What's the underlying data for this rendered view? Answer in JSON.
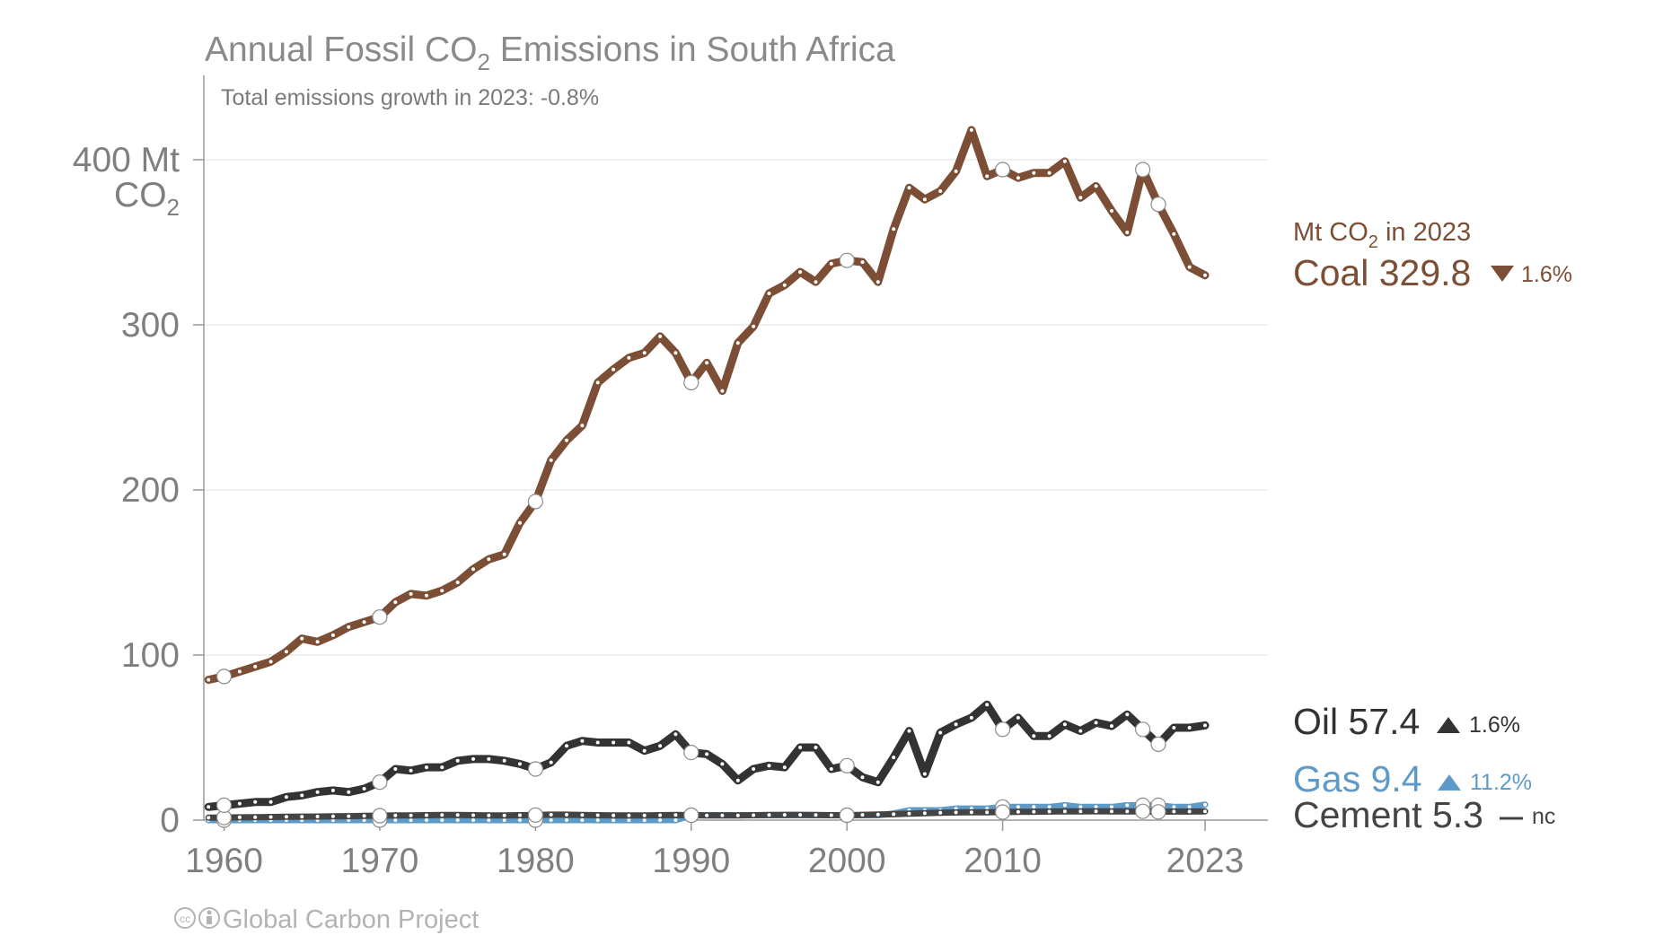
{
  "title": "Annual Fossil CO",
  "title_sub": "2",
  "title_rest": " Emissions in South Africa",
  "subtitle": "Total emissions growth in 2023: -0.8%",
  "y_unit_line1": "400 Mt",
  "y_unit_line2": "CO",
  "y_unit_sub": "2",
  "credit": "Global Carbon Project",
  "icons": [
    "creative-commons-icon",
    "attribution-icon"
  ],
  "colors": {
    "coal": "#7b4e35",
    "oil": "#333333",
    "gas": "#5d9ac7",
    "cement": "#444444",
    "grid": "#e6e6e6",
    "axis": "#999999"
  },
  "labels": {
    "unit_prefix": "Mt CO",
    "unit_sub": "2",
    "unit_suffix": " in 2023",
    "coal": {
      "name": "Coal 329.8",
      "change": "1.6%",
      "direction": "down"
    },
    "oil": {
      "name": "Oil 57.4",
      "change": "1.6%",
      "direction": "up"
    },
    "gas": {
      "name": "Gas 9.4",
      "change": "11.2%",
      "direction": "up"
    },
    "cement": {
      "name": "Cement 5.3",
      "change": "nc",
      "direction": "none"
    }
  },
  "chart_data": {
    "type": "line",
    "title": "Annual Fossil CO2 Emissions in South Africa",
    "ylabel": "Mt CO2",
    "ylim": [
      0,
      450
    ],
    "xlim": [
      1958.7,
      2023
    ],
    "yticks": [
      0,
      100,
      200,
      300,
      400
    ],
    "ytick_labels": [
      "0",
      "100",
      "200",
      "300",
      "400 Mt"
    ],
    "xticks": [
      1960,
      1970,
      1980,
      1990,
      2000,
      2010,
      2023
    ],
    "xtick_labels": [
      "1960",
      "1970",
      "1980",
      "1990",
      "2000",
      "2010",
      "2023"
    ],
    "grid": true,
    "legend": "right, inline labels",
    "x": [
      1959,
      1960,
      1961,
      1962,
      1963,
      1964,
      1965,
      1966,
      1967,
      1968,
      1969,
      1970,
      1971,
      1972,
      1973,
      1974,
      1975,
      1976,
      1977,
      1978,
      1979,
      1980,
      1981,
      1982,
      1983,
      1984,
      1985,
      1986,
      1987,
      1988,
      1989,
      1990,
      1991,
      1992,
      1993,
      1994,
      1995,
      1996,
      1997,
      1998,
      1999,
      2000,
      2001,
      2002,
      2003,
      2004,
      2005,
      2006,
      2007,
      2008,
      2009,
      2010,
      2011,
      2012,
      2013,
      2014,
      2015,
      2016,
      2017,
      2018,
      2019,
      2020,
      2021,
      2022,
      2023
    ],
    "series": [
      {
        "name": "Coal",
        "values": [
          85,
          87,
          90,
          93,
          96,
          102,
          110,
          108,
          112,
          117,
          120,
          123,
          132,
          137,
          136,
          139,
          144,
          152,
          158,
          161,
          180,
          193,
          218,
          230,
          239,
          265,
          273,
          280,
          283,
          293,
          283,
          265,
          277,
          260,
          289,
          299,
          319,
          324,
          332,
          326,
          337,
          339,
          338,
          326,
          358,
          383,
          376,
          381,
          393,
          418,
          390,
          394,
          389,
          392,
          392,
          399,
          377,
          384,
          369,
          356,
          394,
          373,
          355,
          335,
          330
        ]
      },
      {
        "name": "Oil",
        "values": [
          8,
          9,
          10,
          11,
          11,
          14,
          15,
          17,
          18,
          17,
          19,
          23,
          31,
          30,
          32,
          32,
          36,
          37,
          37,
          36,
          34,
          31,
          35,
          45,
          48,
          47,
          47,
          47,
          42,
          45,
          52,
          41,
          40,
          34,
          24,
          31,
          33,
          32,
          44,
          44,
          31,
          33,
          26,
          23,
          38,
          54,
          28,
          53,
          58,
          62,
          70,
          55,
          62,
          51,
          51,
          58,
          54,
          59,
          57,
          64,
          55,
          46,
          56,
          56,
          57.4
        ]
      },
      {
        "name": "Gas",
        "values": [
          0,
          0,
          0,
          0,
          0,
          0,
          0,
          0,
          0,
          0,
          0,
          0,
          0,
          0,
          0,
          0,
          0,
          0,
          0,
          0,
          0,
          0,
          0,
          0,
          0,
          0,
          0,
          0,
          0,
          0,
          0,
          3,
          3,
          3,
          3,
          3,
          3,
          3,
          3,
          3,
          3,
          3,
          3,
          3,
          4,
          6,
          6,
          6,
          7,
          7,
          7,
          8,
          8,
          8,
          8,
          9,
          8,
          8,
          8,
          9,
          9,
          9,
          8,
          8,
          9.4
        ]
      },
      {
        "name": "Cement",
        "values": [
          1.5,
          1.6,
          1.7,
          1.8,
          1.9,
          2.0,
          2.1,
          2.2,
          2.3,
          2.4,
          2.6,
          2.7,
          2.8,
          2.9,
          3.0,
          3.1,
          3.1,
          3.0,
          2.9,
          2.9,
          3.0,
          3.1,
          3.3,
          3.3,
          3.1,
          3.0,
          2.9,
          2.8,
          2.9,
          3.0,
          3.1,
          3.0,
          2.9,
          2.8,
          2.9,
          3.0,
          3.1,
          3.2,
          3.2,
          3.1,
          3.0,
          3.0,
          3.2,
          3.4,
          3.6,
          3.9,
          4.2,
          4.5,
          4.7,
          4.8,
          4.8,
          4.9,
          5.0,
          5.1,
          5.2,
          5.3,
          5.3,
          5.4,
          5.3,
          5.3,
          5.3,
          5.0,
          5.2,
          5.2,
          5.3
        ]
      }
    ]
  }
}
